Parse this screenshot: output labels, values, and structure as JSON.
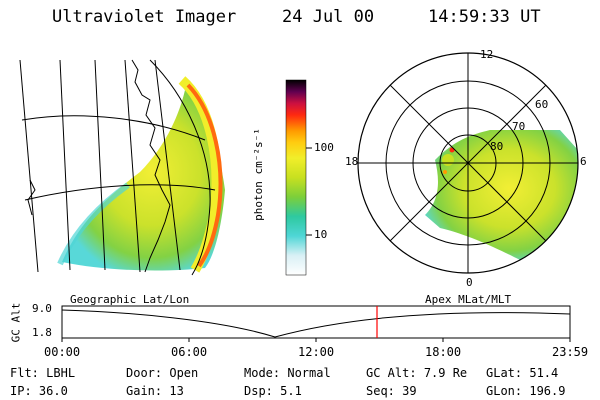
{
  "header": {
    "title": "Ultraviolet Imager",
    "date": "24 Jul 00",
    "time": "14:59:33 UT"
  },
  "colorbar": {
    "unit_label": "photon cm⁻²s⁻¹",
    "ticks": [
      "100",
      "10"
    ],
    "colors": [
      "#ffffff",
      "#d9f0f5",
      "#4fd6d6",
      "#2ec9a0",
      "#7ccf3a",
      "#c8e020",
      "#f1ee2a",
      "#ffcc10",
      "#ff9a00",
      "#ff2a10",
      "#cc1040",
      "#600050",
      "#000000"
    ]
  },
  "geo_panel": {
    "label": "Geographic Lat/Lon"
  },
  "polar_panel": {
    "label": "Apex MLat/MLT",
    "mlt_labels": {
      "top": "12",
      "left": "18",
      "right": "6",
      "bottom": "0"
    },
    "lat_labels": [
      "60",
      "70",
      "80"
    ]
  },
  "timeline": {
    "axis_label": "GC Alt",
    "y_ticks": [
      "9.0",
      "1.8"
    ],
    "x_ticks": [
      "00:00",
      "06:00",
      "12:00",
      "18:00",
      "23:59"
    ],
    "marker_color": "#ff0000"
  },
  "info": {
    "row1": [
      {
        "label": "Flt:",
        "value": "LBHL"
      },
      {
        "label": "Door:",
        "value": "Open"
      },
      {
        "label": "Mode:",
        "value": "Normal"
      },
      {
        "label": "GC Alt:",
        "value": "7.9 Re"
      },
      {
        "label": "GLat:",
        "value": "51.4"
      }
    ],
    "row2": [
      {
        "label": "IP:",
        "value": "36.0"
      },
      {
        "label": "Gain:",
        "value": "13"
      },
      {
        "label": "Dsp:",
        "value": "5.1"
      },
      {
        "label": "Seq:",
        "value": "39"
      },
      {
        "label": "GLon:",
        "value": "196.9"
      }
    ]
  }
}
